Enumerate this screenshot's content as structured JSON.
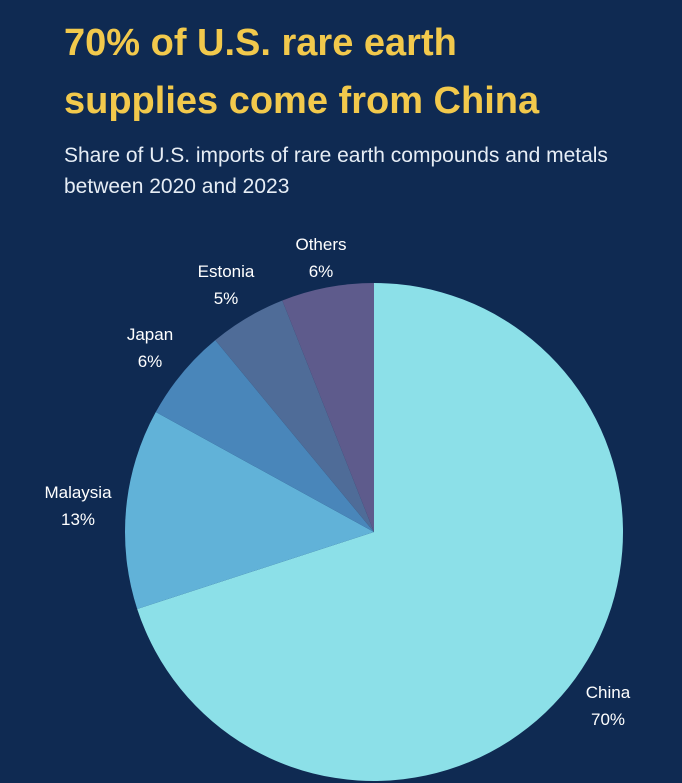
{
  "header": {
    "title_line1": "70% of U.S. rare earth",
    "title_line2": "supplies come from China",
    "subtitle_line1": "Share of U.S. imports of rare earth compounds and metals",
    "subtitle_line2": "between 2020 and 2023"
  },
  "colors": {
    "background": "#0f2a52",
    "title": "#f2c94c"
  },
  "chart_data": {
    "type": "pie",
    "title": "70% of U.S. rare earth supplies come from China",
    "subtitle": "Share of U.S. imports of rare earth compounds and metals between 2020 and 2023",
    "start": "12 o'clock, clockwise",
    "slices": [
      {
        "label": "China",
        "value": 70,
        "display": "70%",
        "color": "#8ce0e8"
      },
      {
        "label": "Malaysia",
        "value": 13,
        "display": "13%",
        "color": "#61b2d8"
      },
      {
        "label": "Japan",
        "value": 6,
        "display": "6%",
        "color": "#4986ba"
      },
      {
        "label": "Estonia",
        "value": 5,
        "display": "5%",
        "color": "#4f6c98"
      },
      {
        "label": "Others",
        "value": 6,
        "display": "6%",
        "color": "#5e5b8c"
      }
    ]
  }
}
